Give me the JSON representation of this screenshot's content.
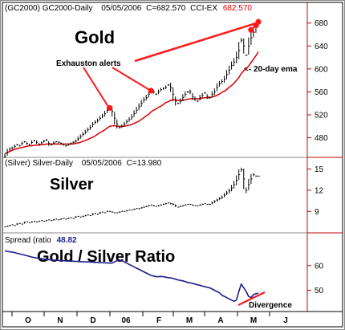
{
  "chart_data": [
    {
      "type": "line",
      "panel": "gold",
      "header": {
        "symbol": "(GC2000)",
        "name": "GC2000-Daily",
        "date": "05/05/2006",
        "close": "C=682.570",
        "indicator": "CCI-EX",
        "last_value": "682.570"
      },
      "title": "Gold",
      "ylim": [
        450,
        695
      ],
      "yticks": [
        480,
        520,
        560,
        600,
        640,
        680
      ],
      "series": [
        {
          "key": "price",
          "color": "#000000",
          "values": [
            448,
            455,
            460,
            462,
            465,
            468,
            466,
            470,
            473,
            470,
            468,
            472,
            475,
            472,
            469,
            471,
            474,
            476,
            470,
            468,
            471,
            473,
            472,
            470,
            468,
            466,
            468,
            470,
            472,
            474,
            478,
            482,
            486,
            490,
            494,
            498,
            503,
            507,
            510,
            514,
            518,
            522,
            528,
            532,
            526,
            514,
            504,
            498,
            500,
            504,
            508,
            512,
            516,
            522,
            528,
            534,
            540,
            546,
            550,
            556,
            562,
            560,
            556,
            560,
            564,
            566,
            568,
            572,
            568,
            556,
            544,
            540,
            544,
            550,
            556,
            560,
            560,
            552,
            548,
            544,
            550,
            554,
            558,
            552,
            550,
            556,
            560,
            568,
            574,
            578,
            582,
            590,
            598,
            606,
            612,
            620,
            632,
            650,
            640,
            624,
            640,
            654,
            664,
            672,
            682
          ]
        },
        {
          "key": "ema20",
          "color": "#dd0000",
          "values": [
            452,
            454,
            456,
            458,
            460,
            461,
            462,
            463,
            464,
            465,
            466,
            466,
            467,
            467,
            467,
            468,
            468,
            469,
            469,
            469,
            469,
            469,
            469,
            469,
            469,
            469,
            469,
            469,
            469,
            470,
            471,
            472,
            474,
            475,
            477,
            479,
            481,
            483,
            486,
            489,
            491,
            494,
            497,
            500,
            501,
            501,
            500,
            500,
            500,
            500,
            501,
            502,
            503,
            505,
            507,
            509,
            512,
            515,
            518,
            521,
            525,
            528,
            530,
            533,
            535,
            538,
            541,
            543,
            545,
            546,
            546,
            545,
            545,
            545,
            546,
            547,
            548,
            548,
            548,
            548,
            548,
            549,
            550,
            550,
            550,
            551,
            552,
            554,
            556,
            559,
            561,
            564,
            568,
            571,
            575,
            580,
            585,
            592,
            597,
            600,
            605,
            611,
            617,
            623,
            630
          ]
        }
      ],
      "alert_points": [
        {
          "index": 43,
          "value": 532
        },
        {
          "index": 60,
          "value": 562
        },
        {
          "index": 101,
          "value": 668
        },
        {
          "index": 103,
          "value": 676
        },
        {
          "index": 104,
          "value": 682
        }
      ],
      "annotations": [
        {
          "text": "Exhauston alerts"
        },
        {
          "text": "<- 20-day ema"
        }
      ]
    },
    {
      "type": "line",
      "panel": "silver",
      "header": {
        "symbol": "(Silver)",
        "name": "Silver-Daily",
        "date": "05/05/2006",
        "close": "C=13.980"
      },
      "title": "Silver",
      "ylim": [
        6.3,
        16.2
      ],
      "yticks": [
        9,
        12,
        15
      ],
      "series": [
        {
          "key": "price",
          "color": "#000000",
          "values": [
            6.8,
            6.9,
            7.0,
            7.1,
            7.0,
            7.2,
            7.3,
            7.2,
            7.4,
            7.5,
            7.4,
            7.5,
            7.6,
            7.5,
            7.6,
            7.7,
            7.6,
            7.7,
            7.8,
            7.7,
            7.8,
            7.9,
            7.8,
            7.9,
            8.0,
            7.9,
            8.0,
            8.1,
            8.0,
            8.2,
            8.3,
            8.2,
            8.3,
            8.4,
            8.5,
            8.4,
            8.6,
            8.7,
            8.6,
            8.8,
            8.9,
            8.8,
            9.0,
            9.0,
            8.9,
            8.8,
            8.8,
            8.9,
            9.0,
            9.0,
            9.1,
            9.2,
            9.2,
            9.3,
            9.4,
            9.4,
            9.5,
            9.6,
            9.7,
            9.8,
            9.9,
            9.8,
            9.7,
            9.8,
            9.9,
            10.0,
            10.1,
            10.2,
            10.1,
            10.0,
            9.8,
            9.6,
            9.7,
            9.8,
            9.9,
            10.0,
            10.0,
            9.9,
            9.8,
            9.8,
            9.9,
            10.0,
            10.1,
            10.0,
            10.0,
            10.2,
            10.4,
            10.6,
            10.8,
            11.0,
            11.3,
            11.6,
            11.9,
            12.3,
            12.8,
            13.4,
            14.2,
            14.9,
            13.6,
            12.0,
            12.8,
            13.6,
            14.2,
            14.0,
            14.0
          ]
        }
      ]
    },
    {
      "type": "line",
      "panel": "ratio",
      "header": {
        "label": "Spread (ratio",
        "value": "48.82"
      },
      "title": "Gold / Silver Ratio",
      "ylim": [
        42,
        72
      ],
      "yticks": [
        50,
        60
      ],
      "series": [
        {
          "key": "ratio",
          "color": "#1c1c8c",
          "values": [
            66.0,
            65.8,
            65.6,
            65.5,
            65.3,
            65.0,
            64.8,
            64.5,
            64.3,
            64.0,
            63.8,
            63.5,
            63.3,
            63.1,
            63.0,
            62.8,
            62.7,
            62.5,
            62.4,
            62.3,
            62.2,
            62.2,
            62.1,
            62.0,
            62.0,
            61.9,
            61.9,
            61.8,
            61.8,
            61.7,
            61.7,
            61.6,
            61.6,
            61.5,
            61.5,
            61.4,
            61.4,
            61.3,
            61.3,
            61.2,
            61.2,
            61.1,
            61.1,
            61.0,
            61.0,
            61.5,
            62.0,
            62.3,
            62.0,
            61.5,
            61.0,
            60.5,
            60.0,
            59.5,
            59.0,
            58.5,
            58.0,
            57.5,
            57.0,
            56.5,
            56.0,
            55.8,
            55.5,
            55.5,
            55.6,
            55.5,
            55.3,
            55.1,
            55.0,
            54.8,
            54.5,
            54.2,
            54.0,
            53.8,
            53.5,
            53.2,
            53.0,
            52.8,
            52.5,
            52.2,
            52.0,
            51.7,
            51.5,
            51.2,
            51.0,
            50.5,
            50.0,
            49.5,
            49.0,
            48.0,
            47.5,
            47.0,
            46.5,
            46.0,
            45.5,
            46.0,
            49.5,
            52.5,
            51.0,
            49.5,
            47.5,
            47.0,
            48.2,
            48.6,
            48.82
          ]
        }
      ],
      "annotations": [
        {
          "text": "Divergence"
        }
      ]
    }
  ],
  "x_axis": {
    "months": [
      "O",
      "N",
      "D",
      "06",
      "F",
      "M",
      "A",
      "M",
      "J"
    ]
  }
}
